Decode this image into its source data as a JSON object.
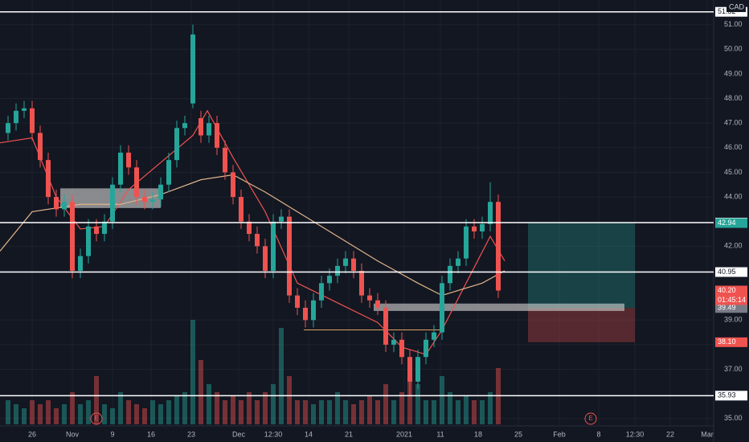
{
  "chart_data": {
    "type": "candlestick",
    "currency": "CAD",
    "open": [
      46.6,
      47.0,
      47.5,
      47.6,
      46.6,
      45.5,
      44.0,
      43.5,
      43.8,
      41.0,
      41.6,
      42.8,
      42.5,
      43.0,
      44.5,
      45.8,
      45.2,
      44.0,
      43.8,
      43.9,
      44.5,
      45.5,
      46.8,
      47.8,
      47.2,
      46.5,
      47.0,
      46.0,
      45.0,
      44.0,
      43.0,
      42.5,
      42.0,
      41.0,
      43.0,
      43.2,
      40.0,
      39.5,
      39.0,
      39.8,
      40.5,
      40.8,
      41.2,
      41.5,
      41.0,
      40.0,
      39.8,
      39.5,
      38.0,
      38.2,
      37.5,
      36.5,
      37.5,
      38.2,
      38.5,
      40.5,
      41.2,
      41.5,
      42.8,
      42.6,
      42.9,
      43.8
    ],
    "high": [
      47.3,
      47.8,
      47.9,
      47.9,
      46.9,
      45.8,
      44.3,
      44.1,
      44.1,
      41.9,
      43.1,
      43.1,
      43.3,
      44.8,
      46.1,
      46.1,
      45.5,
      44.3,
      44.2,
      44.8,
      45.8,
      47.1,
      47.3,
      51.0,
      47.5,
      47.3,
      47.3,
      46.3,
      45.3,
      44.3,
      43.3,
      42.8,
      42.3,
      43.3,
      43.5,
      43.5,
      40.3,
      39.8,
      40.1,
      40.8,
      41.1,
      41.5,
      41.8,
      41.8,
      41.3,
      40.3,
      40.1,
      39.8,
      38.5,
      38.5,
      37.8,
      37.8,
      38.5,
      38.8,
      40.8,
      41.5,
      41.8,
      43.1,
      43.1,
      43.2,
      44.6,
      44.1
    ],
    "low": [
      46.3,
      46.7,
      47.2,
      46.3,
      45.2,
      43.7,
      43.2,
      43.2,
      40.7,
      40.7,
      41.3,
      42.2,
      42.2,
      42.7,
      44.2,
      44.9,
      43.7,
      43.5,
      43.5,
      43.6,
      44.2,
      45.2,
      46.5,
      47.6,
      46.2,
      46.2,
      45.7,
      44.7,
      43.7,
      42.7,
      42.2,
      41.7,
      40.7,
      40.7,
      42.7,
      39.7,
      39.2,
      38.7,
      38.7,
      39.5,
      40.2,
      40.5,
      40.9,
      40.7,
      39.7,
      39.5,
      39.2,
      37.7,
      37.7,
      37.2,
      35.9,
      36.2,
      37.2,
      37.9,
      38.2,
      40.2,
      40.9,
      41.2,
      42.3,
      42.3,
      42.6,
      39.9
    ],
    "close": [
      47.0,
      47.5,
      47.6,
      46.6,
      45.5,
      44.0,
      43.5,
      43.8,
      41.0,
      41.6,
      42.8,
      42.5,
      43.0,
      44.5,
      45.8,
      45.2,
      44.0,
      43.8,
      43.9,
      44.5,
      45.5,
      46.8,
      47.0,
      50.6,
      46.5,
      47.0,
      46.0,
      45.0,
      44.0,
      43.0,
      42.5,
      42.0,
      41.0,
      43.0,
      43.2,
      40.0,
      39.5,
      39.0,
      39.8,
      40.5,
      40.8,
      41.2,
      41.5,
      41.0,
      40.0,
      39.8,
      39.5,
      38.0,
      38.2,
      37.5,
      36.5,
      37.5,
      38.2,
      38.5,
      40.5,
      41.2,
      41.5,
      42.8,
      42.6,
      42.9,
      43.8,
      40.2
    ],
    "volume": [
      3,
      2.5,
      2,
      3,
      2.5,
      3,
      2,
      2.5,
      4,
      2.5,
      3,
      6,
      2.5,
      2,
      4,
      3,
      2.5,
      2,
      3,
      2.5,
      3,
      3.5,
      4,
      13,
      8,
      5,
      4,
      3,
      3.5,
      3,
      4,
      3,
      4,
      5,
      12,
      6,
      3,
      3,
      2.5,
      3,
      3,
      4,
      3,
      2.5,
      3,
      3.5,
      3,
      5,
      3,
      4,
      6,
      5,
      3,
      3,
      6,
      4,
      3,
      3.5,
      3,
      3,
      4,
      7
    ],
    "lines": [
      {
        "color": "#f05350",
        "x": [
          -1,
          3,
          6,
          9,
          12,
          15,
          19,
          23,
          24.8,
          28,
          32,
          36,
          41,
          46,
          49,
          52,
          54,
          57,
          60,
          61.8
        ],
        "values": [
          46.2,
          46.4,
          44.0,
          42.7,
          42.8,
          44.3,
          45.4,
          46.5,
          47.5,
          45.6,
          43.4,
          40.5,
          39.7,
          38.9,
          37.9,
          37.6,
          38.6,
          40.5,
          42.4,
          41.4
        ]
      },
      {
        "color": "#e0b48a",
        "x": [
          -1,
          3,
          9,
          14,
          19,
          24,
          28,
          32,
          36,
          41,
          46,
          51,
          54,
          59,
          61.8
        ],
        "values": [
          41.8,
          43.4,
          43.7,
          43.7,
          44.1,
          44.7,
          44.9,
          44.2,
          43.4,
          42.4,
          41.4,
          40.5,
          40.0,
          40.5,
          41.0
        ]
      }
    ],
    "ylim": [
      34.7,
      52.0
    ],
    "yticks": [
      {
        "value": 35,
        "label": "35.00"
      },
      {
        "value": 37,
        "label": "37.00"
      },
      {
        "value": 38,
        "label": "38.00"
      },
      {
        "value": 39,
        "label": "39.00"
      },
      {
        "value": 41,
        "label": "41.00"
      },
      {
        "value": 42,
        "label": "42.00"
      },
      {
        "value": 44,
        "label": "44.00"
      },
      {
        "value": 45,
        "label": "45.00"
      },
      {
        "value": 46,
        "label": "46.00"
      },
      {
        "value": 47,
        "label": "47.00"
      },
      {
        "value": 48,
        "label": "48.00"
      },
      {
        "value": 49,
        "label": "49.00"
      },
      {
        "value": 50,
        "label": "50.00"
      },
      {
        "value": 51,
        "label": "51.00"
      }
    ],
    "xticks": [
      {
        "value": 3,
        "label": "26"
      },
      {
        "value": 8,
        "label": "Nov"
      },
      {
        "value": 13,
        "label": "9"
      },
      {
        "value": 17.8,
        "label": "16"
      },
      {
        "value": 22.8,
        "label": "23"
      },
      {
        "value": 28.7,
        "label": "Dec"
      },
      {
        "value": 33,
        "label": "12:30"
      },
      {
        "value": 37.4,
        "label": "14"
      },
      {
        "value": 42.4,
        "label": "21"
      },
      {
        "value": 49.3,
        "label": "2021"
      },
      {
        "value": 53.8,
        "label": "11"
      },
      {
        "value": 58.5,
        "label": "18"
      },
      {
        "value": 63.5,
        "label": "25"
      },
      {
        "value": 68.6,
        "label": "Feb"
      },
      {
        "value": 73.5,
        "label": "8"
      },
      {
        "value": 78,
        "label": "12:30"
      },
      {
        "value": 82.4,
        "label": "22"
      },
      {
        "value": 87,
        "label": "Mar"
      }
    ],
    "levels": [
      {
        "value": 51.52,
        "label": "51.52"
      },
      {
        "value": 42.96,
        "label": "42.96"
      },
      {
        "value": 40.95,
        "label": "40.95"
      },
      {
        "value": 35.93,
        "label": "35.93"
      }
    ],
    "price_labels": [
      {
        "value": 42.94,
        "label": "42.94",
        "color": "#26a69a"
      },
      {
        "value": 40.2,
        "label": "40.20",
        "color": "#ef5350"
      },
      {
        "value": 39.49,
        "label": "39.49",
        "color": "#787b86"
      },
      {
        "value": 38.1,
        "label": "38.10",
        "color": "#ef5350"
      }
    ],
    "countdown": "01:45:14",
    "zones": [
      {
        "top": 44.35,
        "bottom": 43.55,
        "x0": 6.5,
        "x1": 19
      },
      {
        "top": 39.67,
        "bottom": 39.37,
        "x0": 45.5,
        "x1": 76.7
      }
    ],
    "ray": {
      "value": 38.6,
      "x0": 36.8,
      "x1": 53.8,
      "color": "#e0a060"
    },
    "position": {
      "target": 42.96,
      "entry": 39.49,
      "stop": 38.1,
      "x0": 64.7,
      "x1": 78
    },
    "earnings": {
      "label": "E",
      "x": [
        11,
        72.5
      ]
    }
  }
}
